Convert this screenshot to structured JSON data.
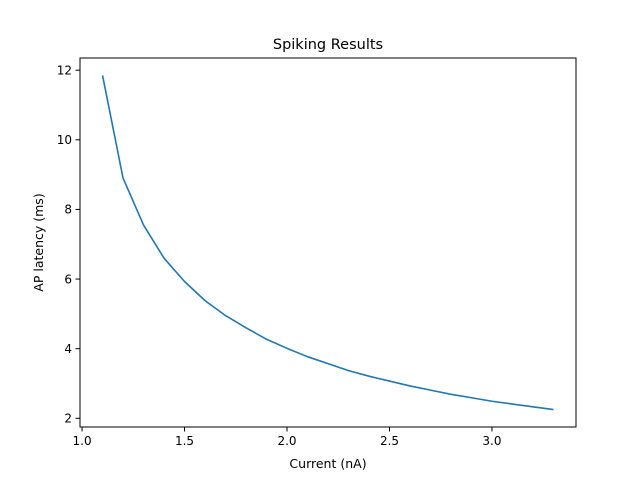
{
  "chart_data": {
    "type": "line",
    "title": "Spiking Results",
    "xlabel": "Current (nA)",
    "ylabel": "AP latency (ms)",
    "xlim": [
      0.99,
      3.41
    ],
    "ylim": [
      1.75,
      12.35
    ],
    "xticks": [
      1.0,
      1.5,
      2.0,
      2.5,
      3.0
    ],
    "xtick_labels": [
      "1.0",
      "1.5",
      "2.0",
      "2.5",
      "3.0"
    ],
    "yticks": [
      2,
      4,
      6,
      8,
      10,
      12
    ],
    "ytick_labels": [
      "2",
      "4",
      "6",
      "8",
      "10",
      "12"
    ],
    "grid": false,
    "series": [
      {
        "color": "#1f77b4",
        "x": [
          1.1,
          1.2,
          1.3,
          1.4,
          1.5,
          1.6,
          1.7,
          1.8,
          1.9,
          2.0,
          2.1,
          2.2,
          2.3,
          2.4,
          2.5,
          2.6,
          2.7,
          2.8,
          2.9,
          3.0,
          3.1,
          3.2,
          3.3
        ],
        "y": [
          11.85,
          8.9,
          7.55,
          6.6,
          5.93,
          5.38,
          4.95,
          4.6,
          4.27,
          4.01,
          3.77,
          3.57,
          3.37,
          3.21,
          3.07,
          2.93,
          2.81,
          2.69,
          2.59,
          2.49,
          2.41,
          2.33,
          2.25
        ]
      }
    ]
  }
}
